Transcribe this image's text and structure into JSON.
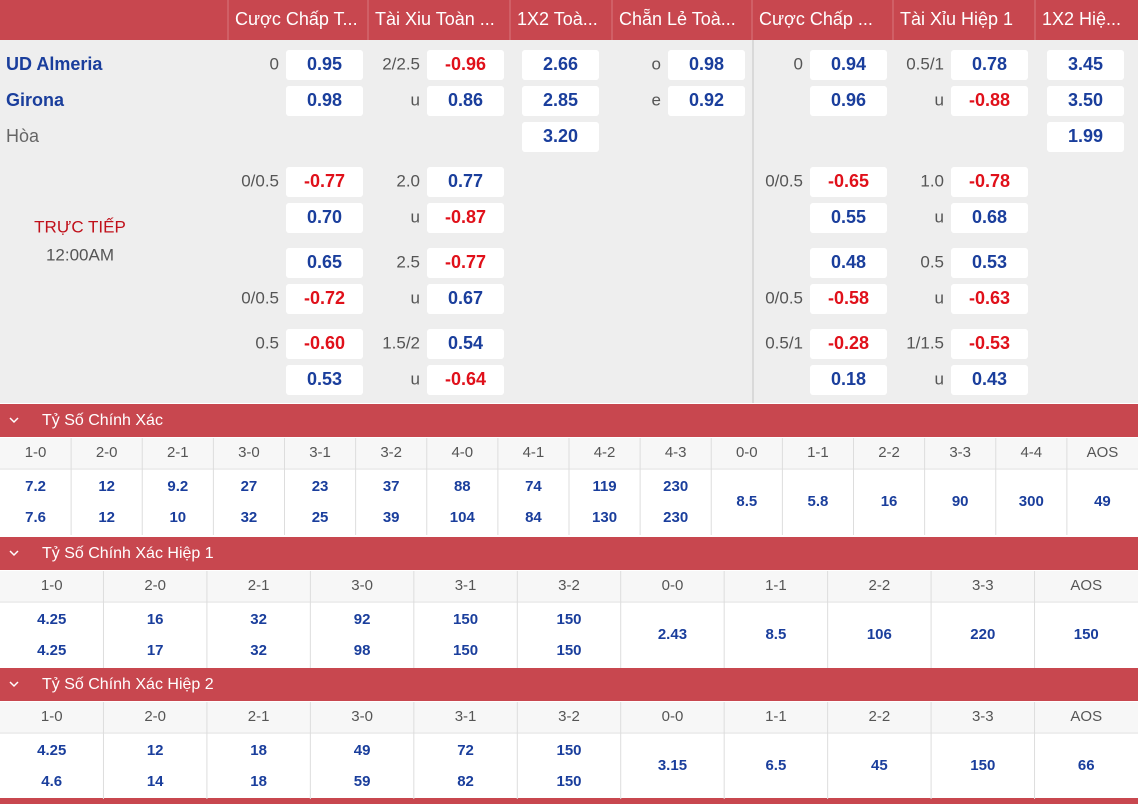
{
  "header": {
    "columns": [
      "Cược Chấp T...",
      "Tài Xiu Toàn ...",
      "1X2 Toà...",
      "Chẵn Lẻ Toà...",
      "Cược Chấp ...",
      "Tài Xỉu Hiệp 1",
      "1X2 Hiệ..."
    ]
  },
  "match": {
    "home": "UD Almeria",
    "away": "Girona",
    "draw": "Hòa",
    "status": "TRỰC TIẾP",
    "time": "12:00AM"
  },
  "odds_rows": [
    [
      {
        "label": "0",
        "odds": "0.95"
      },
      {
        "label": "2/2.5",
        "odds": "-0.96"
      },
      {
        "odds": "2.66"
      },
      {
        "label": "o",
        "odds": "0.98"
      },
      {
        "label": "0",
        "odds": "0.94"
      },
      {
        "label": "0.5/1",
        "odds": "0.78"
      },
      {
        "odds": "3.45"
      }
    ],
    [
      {
        "odds": "0.98"
      },
      {
        "label": "u",
        "odds": "0.86"
      },
      {
        "odds": "2.85"
      },
      {
        "label": "e",
        "odds": "0.92"
      },
      {
        "odds": "0.96"
      },
      {
        "label": "u",
        "odds": "-0.88"
      },
      {
        "odds": "3.50"
      }
    ],
    [
      null,
      null,
      {
        "odds": "3.20"
      },
      null,
      null,
      null,
      {
        "odds": "1.99"
      }
    ],
    [
      {
        "label": "0/0.5",
        "odds": "-0.77"
      },
      {
        "label": "2.0",
        "odds": "0.77"
      },
      null,
      null,
      {
        "label": "0/0.5",
        "odds": "-0.65"
      },
      {
        "label": "1.0",
        "odds": "-0.78"
      },
      null
    ],
    [
      {
        "odds": "0.70"
      },
      {
        "label": "u",
        "odds": "-0.87"
      },
      null,
      null,
      {
        "odds": "0.55"
      },
      {
        "label": "u",
        "odds": "0.68"
      },
      null
    ],
    [
      {
        "odds": "0.65"
      },
      {
        "label": "2.5",
        "odds": "-0.77"
      },
      null,
      null,
      {
        "odds": "0.48"
      },
      {
        "label": "0.5",
        "odds": "0.53"
      },
      null
    ],
    [
      {
        "label": "0/0.5",
        "odds": "-0.72"
      },
      {
        "label": "u",
        "odds": "0.67"
      },
      null,
      null,
      {
        "label": "0/0.5",
        "odds": "-0.58"
      },
      {
        "label": "u",
        "odds": "-0.63"
      },
      null
    ],
    [
      {
        "label": "0.5",
        "odds": "-0.60"
      },
      {
        "label": "1.5/2",
        "odds": "0.54"
      },
      null,
      null,
      {
        "label": "0.5/1",
        "odds": "-0.28"
      },
      {
        "label": "1/1.5",
        "odds": "-0.53"
      },
      null
    ],
    [
      {
        "odds": "0.53"
      },
      {
        "label": "u",
        "odds": "-0.64"
      },
      null,
      null,
      {
        "odds": "0.18"
      },
      {
        "label": "u",
        "odds": "0.43"
      },
      null
    ]
  ],
  "sections": [
    {
      "title": "Tỷ Số Chính Xác",
      "columns": [
        {
          "score": "1-0",
          "values": [
            "7.2",
            "7.6"
          ]
        },
        {
          "score": "2-0",
          "values": [
            "12",
            "12"
          ]
        },
        {
          "score": "2-1",
          "values": [
            "9.2",
            "10"
          ]
        },
        {
          "score": "3-0",
          "values": [
            "27",
            "32"
          ]
        },
        {
          "score": "3-1",
          "values": [
            "23",
            "25"
          ]
        },
        {
          "score": "3-2",
          "values": [
            "37",
            "39"
          ]
        },
        {
          "score": "4-0",
          "values": [
            "88",
            "104"
          ]
        },
        {
          "score": "4-1",
          "values": [
            "74",
            "84"
          ]
        },
        {
          "score": "4-2",
          "values": [
            "119",
            "130"
          ]
        },
        {
          "score": "4-3",
          "values": [
            "230",
            "230"
          ]
        },
        {
          "score": "0-0",
          "values": [
            "8.5"
          ]
        },
        {
          "score": "1-1",
          "values": [
            "5.8"
          ]
        },
        {
          "score": "2-2",
          "values": [
            "16"
          ]
        },
        {
          "score": "3-3",
          "values": [
            "90"
          ]
        },
        {
          "score": "4-4",
          "values": [
            "300"
          ]
        },
        {
          "score": "AOS",
          "values": [
            "49"
          ]
        }
      ]
    },
    {
      "title": "Tỷ Số Chính Xác Hiệp 1",
      "columns": [
        {
          "score": "1-0",
          "values": [
            "4.25",
            "4.25"
          ]
        },
        {
          "score": "2-0",
          "values": [
            "16",
            "17"
          ]
        },
        {
          "score": "2-1",
          "values": [
            "32",
            "32"
          ]
        },
        {
          "score": "3-0",
          "values": [
            "92",
            "98"
          ]
        },
        {
          "score": "3-1",
          "values": [
            "150",
            "150"
          ]
        },
        {
          "score": "3-2",
          "values": [
            "150",
            "150"
          ]
        },
        {
          "score": "0-0",
          "values": [
            "2.43"
          ]
        },
        {
          "score": "1-1",
          "values": [
            "8.5"
          ]
        },
        {
          "score": "2-2",
          "values": [
            "106"
          ]
        },
        {
          "score": "3-3",
          "values": [
            "220"
          ]
        },
        {
          "score": "AOS",
          "values": [
            "150"
          ]
        }
      ]
    },
    {
      "title": "Tỷ Số Chính Xác Hiệp 2",
      "columns": [
        {
          "score": "1-0",
          "values": [
            "4.25",
            "4.6"
          ]
        },
        {
          "score": "2-0",
          "values": [
            "12",
            "14"
          ]
        },
        {
          "score": "2-1",
          "values": [
            "18",
            "18"
          ]
        },
        {
          "score": "3-0",
          "values": [
            "49",
            "59"
          ]
        },
        {
          "score": "3-1",
          "values": [
            "72",
            "82"
          ]
        },
        {
          "score": "3-2",
          "values": [
            "150",
            "150"
          ]
        },
        {
          "score": "0-0",
          "values": [
            "3.15"
          ]
        },
        {
          "score": "1-1",
          "values": [
            "6.5"
          ]
        },
        {
          "score": "2-2",
          "values": [
            "45"
          ]
        },
        {
          "score": "3-3",
          "values": [
            "150"
          ]
        },
        {
          "score": "AOS",
          "values": [
            "66"
          ]
        }
      ]
    }
  ]
}
